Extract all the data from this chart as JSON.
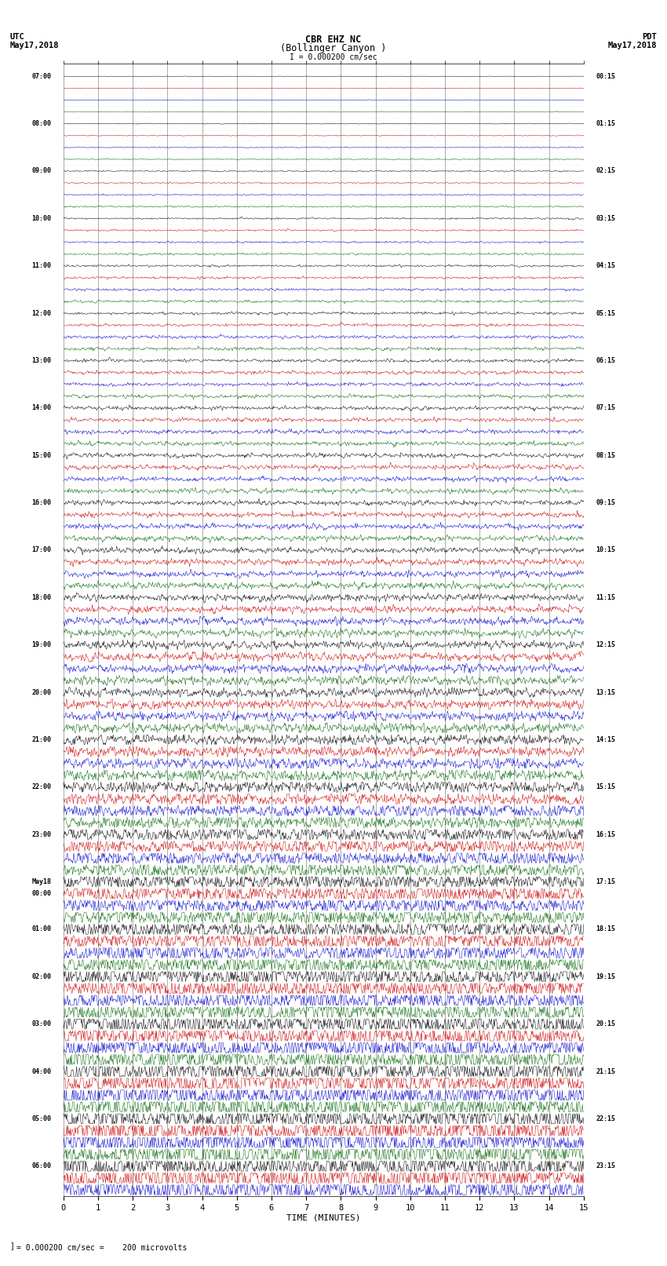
{
  "title_line1": "CBR EHZ NC",
  "title_line2": "(Bollinger Canyon )",
  "title_scale": "I = 0.000200 cm/sec",
  "left_header1": "UTC",
  "left_header2": "May17,2018",
  "right_header1": "PDT",
  "right_header2": "May17,2018",
  "xlabel": "TIME (MINUTES)",
  "footer": "= 0.000200 cm/sec =    200 microvolts",
  "xlim": [
    0,
    15
  ],
  "xticks": [
    0,
    1,
    2,
    3,
    4,
    5,
    6,
    7,
    8,
    9,
    10,
    11,
    12,
    13,
    14,
    15
  ],
  "background_color": "#ffffff",
  "line_colors": [
    "black",
    "#cc0000",
    "#0000cc",
    "#006600"
  ],
  "grid_color": "#888888",
  "utc_labels": [
    "07:00",
    "",
    "",
    "",
    "08:00",
    "",
    "",
    "",
    "09:00",
    "",
    "",
    "",
    "10:00",
    "",
    "",
    "",
    "11:00",
    "",
    "",
    "",
    "12:00",
    "",
    "",
    "",
    "13:00",
    "",
    "",
    "",
    "14:00",
    "",
    "",
    "",
    "15:00",
    "",
    "",
    "",
    "16:00",
    "",
    "",
    "",
    "17:00",
    "",
    "",
    "",
    "18:00",
    "",
    "",
    "",
    "19:00",
    "",
    "",
    "",
    "20:00",
    "",
    "",
    "",
    "21:00",
    "",
    "",
    "",
    "22:00",
    "",
    "",
    "",
    "23:00",
    "",
    "",
    "",
    "May18",
    "00:00",
    "",
    "",
    "01:00",
    "",
    "",
    "",
    "02:00",
    "",
    "",
    "",
    "03:00",
    "",
    "",
    "",
    "04:00",
    "",
    "",
    "",
    "05:00",
    "",
    "",
    "",
    "06:00",
    "",
    ""
  ],
  "pdt_labels": [
    "00:15",
    "",
    "",
    "",
    "01:15",
    "",
    "",
    "",
    "02:15",
    "",
    "",
    "",
    "03:15",
    "",
    "",
    "",
    "04:15",
    "",
    "",
    "",
    "05:15",
    "",
    "",
    "",
    "06:15",
    "",
    "",
    "",
    "07:15",
    "",
    "",
    "",
    "08:15",
    "",
    "",
    "",
    "09:15",
    "",
    "",
    "",
    "10:15",
    "",
    "",
    "",
    "11:15",
    "",
    "",
    "",
    "12:15",
    "",
    "",
    "",
    "13:15",
    "",
    "",
    "",
    "14:15",
    "",
    "",
    "",
    "15:15",
    "",
    "",
    "",
    "16:15",
    "",
    "",
    "",
    "17:15",
    "",
    "",
    "",
    "18:15",
    "",
    "",
    "",
    "19:15",
    "",
    "",
    "",
    "20:15",
    "",
    "",
    "",
    "21:15",
    "",
    "",
    "",
    "22:15",
    "",
    "",
    "",
    "23:15",
    "",
    ""
  ],
  "num_rows": 95,
  "noise_seed": 42,
  "samples_per_row": 900
}
